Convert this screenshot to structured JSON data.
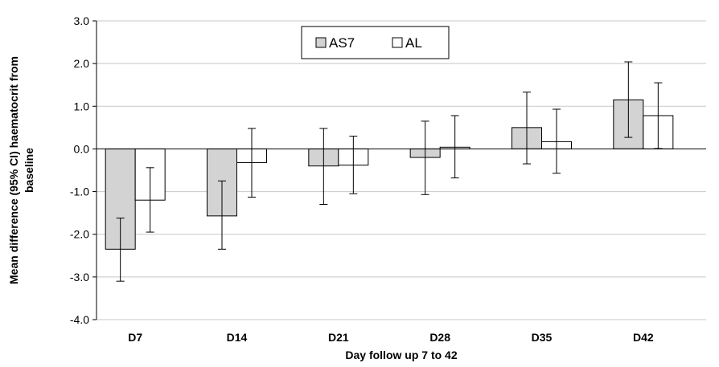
{
  "chart_data": {
    "type": "bar",
    "title": "",
    "xlabel": "Day follow up 7 to 42",
    "ylabel_lines": [
      "Mean difference (95% CI) haematocrit from",
      "baseline"
    ],
    "ylim": [
      -4.0,
      3.0
    ],
    "yticks": [
      3.0,
      2.0,
      1.0,
      0.0,
      -1.0,
      -2.0,
      -3.0,
      -4.0
    ],
    "ytick_labels": [
      "3.0",
      "2.0",
      "1.0",
      "0.0",
      "-1.0",
      "-2.0",
      "-3.0",
      "-4.0"
    ],
    "grid": true,
    "legend_position": "top-center",
    "categories": [
      "D7",
      "D14",
      "D21",
      "D28",
      "D35",
      "D42"
    ],
    "series": [
      {
        "name": "AS7",
        "color": "#d3d3d3",
        "values": [
          -2.35,
          -1.57,
          -0.4,
          -0.2,
          0.5,
          1.15
        ],
        "ci_low": [
          -3.1,
          -2.35,
          -1.3,
          -1.07,
          -0.35,
          0.27
        ],
        "ci_high": [
          -1.62,
          -0.75,
          0.48,
          0.65,
          1.33,
          2.04
        ]
      },
      {
        "name": "AL",
        "color": "#ffffff",
        "values": [
          -1.2,
          -0.32,
          -0.38,
          0.04,
          0.17,
          0.78
        ],
        "ci_low": [
          -1.95,
          -1.13,
          -1.05,
          -0.68,
          -0.57,
          0.01
        ],
        "ci_high": [
          -0.44,
          0.48,
          0.3,
          0.78,
          0.93,
          1.55
        ]
      }
    ]
  }
}
